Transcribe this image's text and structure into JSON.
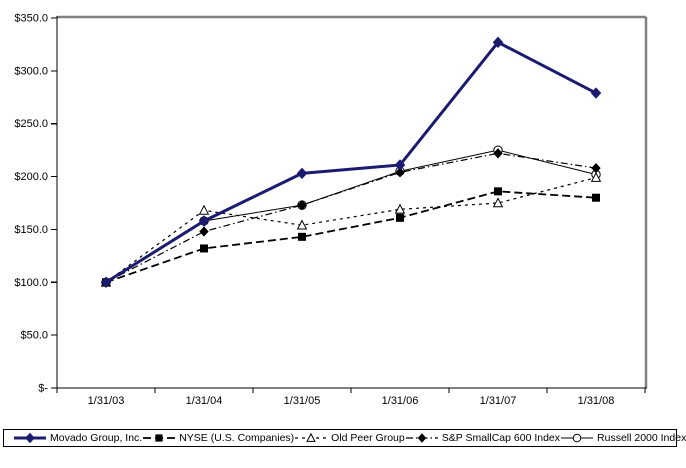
{
  "chart_data": {
    "type": "line",
    "title": "",
    "xlabel": "",
    "ylabel": "",
    "x_categories": [
      "1/31/03",
      "1/31/04",
      "1/31/05",
      "1/31/06",
      "1/31/07",
      "1/31/08"
    ],
    "y_ticks": [
      "$350.0",
      "$300.0",
      "$250.0",
      "$200.0",
      "$150.0",
      "$100.0",
      "$50.0",
      "$-"
    ],
    "y_tick_values": [
      350,
      300,
      250,
      200,
      150,
      100,
      50,
      0
    ],
    "ylim": [
      0,
      350
    ],
    "grid": false,
    "legend_position": "bottom",
    "series": [
      {
        "name": "Movado Group, Inc.",
        "values": [
          100,
          158,
          203,
          211,
          327,
          279
        ],
        "color": "#1b1b6f",
        "line_width": 3,
        "dash": "",
        "marker": "diamond-filled"
      },
      {
        "name": "NYSE (U.S. Companies)",
        "values": [
          100,
          132,
          143,
          161,
          186,
          180
        ],
        "color": "#000000",
        "line_width": 1.8,
        "dash": "8,4",
        "marker": "square-filled"
      },
      {
        "name": "Old Peer Group",
        "values": [
          100,
          168,
          154,
          169,
          175,
          199
        ],
        "color": "#000000",
        "line_width": 1.2,
        "dash": "3,4",
        "marker": "triangle-open"
      },
      {
        "name": "S&P SmallCap 600 Index",
        "values": [
          100,
          148,
          173,
          204,
          222,
          208
        ],
        "color": "#000000",
        "line_width": 1.2,
        "dash": "7,3,1.5,3",
        "marker": "diamond-filled-small"
      },
      {
        "name": "Russell 2000 Index",
        "values": [
          100,
          158,
          173,
          205,
          225,
          202
        ],
        "color": "#000000",
        "line_width": 1,
        "dash": "",
        "marker": "circle-open"
      }
    ]
  },
  "colors": {
    "background": "#ffffff",
    "axis": "#000000",
    "plot_border_gray": "#808080",
    "movado_navy": "#1b1b6f"
  }
}
